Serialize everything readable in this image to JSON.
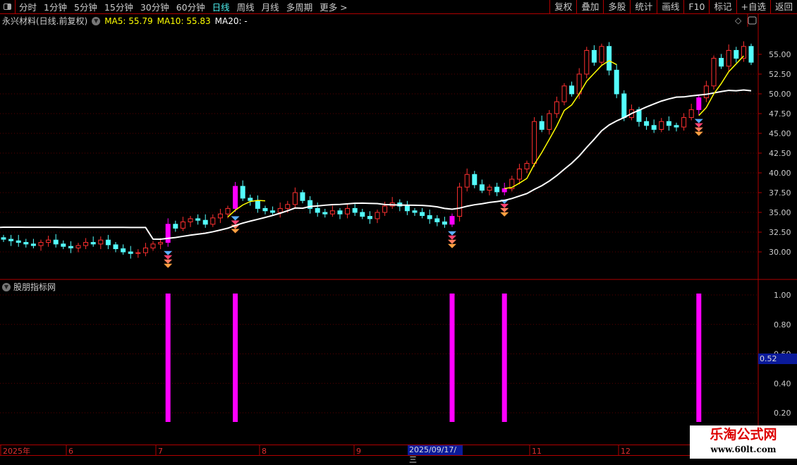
{
  "toolbar": {
    "periods": [
      "分时",
      "1分钟",
      "5分钟",
      "15分钟",
      "30分钟",
      "60分钟",
      "日线",
      "周线",
      "月线",
      "多周期",
      "更多 >"
    ],
    "active_period": "日线",
    "right_buttons": [
      "复权",
      "叠加",
      "多股",
      "统计",
      "画线",
      "F10",
      "标记",
      "+自选",
      "返回"
    ]
  },
  "info": {
    "title": "永兴材料(日线.前复权)",
    "ma5": "MA5: 55.79",
    "ma10": "MA10: 55.83",
    "ma20": "MA20: -"
  },
  "indicator": {
    "title": "股朋指标网",
    "current_value": "0.52",
    "axis_ticks": [
      "1.00",
      "0.80",
      "0.60",
      "0.40",
      "0.20"
    ]
  },
  "time_axis": {
    "labels": [
      "2025年",
      "6",
      "7",
      "8",
      "9",
      "11",
      "12"
    ],
    "cursor_date": "2025/09/17/三"
  },
  "watermark": {
    "line1": "乐淘公式网",
    "line2": "www.60lt.com"
  },
  "colors": {
    "up": "#ff3030",
    "down": "#54ffff",
    "signal": "#ff00ff",
    "ma_short": "#ffff00",
    "ma_long": "#ffffff",
    "border": "#b00000"
  },
  "chart_data": {
    "type": "candlestick",
    "price_ticks": [
      "55.00",
      "52.50",
      "50.00",
      "47.50",
      "45.00",
      "42.50",
      "40.00",
      "37.50",
      "35.00",
      "32.50",
      "30.00"
    ],
    "closes": [
      31.6,
      31.4,
      31.2,
      31.0,
      30.8,
      31.2,
      31.5,
      31.0,
      30.7,
      30.5,
      30.8,
      31.2,
      31.0,
      31.5,
      30.9,
      30.4,
      30.0,
      29.8,
      29.9,
      30.5,
      31.0,
      31.2,
      33.5,
      33.0,
      33.8,
      34.2,
      34.0,
      33.5,
      34.3,
      34.8,
      35.5,
      38.3,
      36.8,
      36.5,
      35.5,
      35.2,
      35.0,
      35.5,
      36.0,
      37.5,
      36.5,
      35.5,
      35.0,
      34.8,
      35.2,
      34.8,
      35.5,
      35.0,
      34.5,
      34.2,
      35.0,
      35.8,
      36.2,
      35.8,
      35.2,
      35.0,
      34.6,
      34.2,
      33.8,
      33.5,
      34.5,
      38.2,
      39.8,
      38.5,
      37.8,
      38.2,
      37.6,
      38.0,
      39.2,
      40.5,
      41.2,
      46.5,
      45.5,
      47.5,
      49.0,
      51.0,
      50.0,
      52.5,
      55.5,
      54.0,
      56.0,
      53.0,
      50.0,
      47.0,
      48.0,
      46.5,
      46.0,
      45.5,
      46.5,
      46.0,
      45.8,
      47.0,
      48.0,
      49.5,
      51.0,
      54.5,
      53.5,
      55.5,
      54.5,
      56.0,
      54.0
    ],
    "signal_indices": [
      22,
      31,
      60,
      67,
      93
    ],
    "signal_value": 1.0
  }
}
